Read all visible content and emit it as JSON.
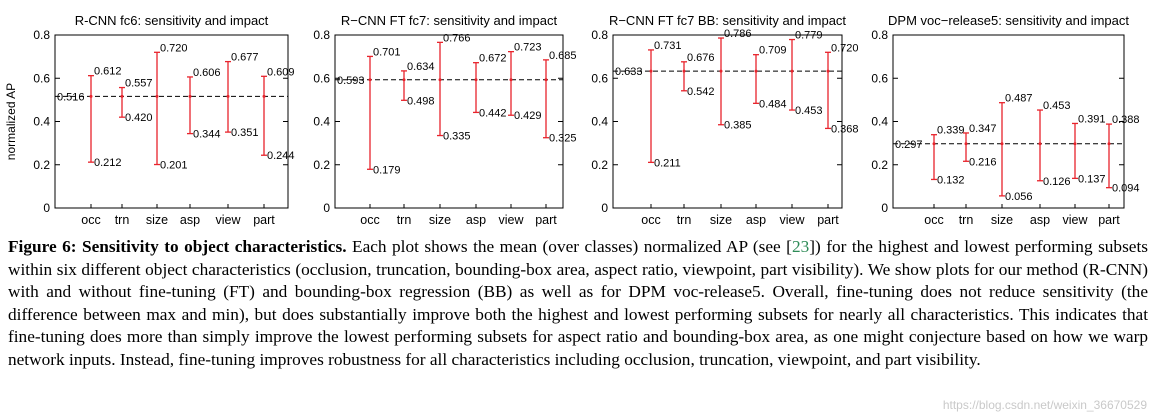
{
  "chart_data": [
    {
      "type": "errorbar",
      "title": "R-CNN fc6: sensitivity and impact",
      "ylabel": "normalized AP",
      "ylim": [
        0,
        0.8
      ],
      "yticks": [
        "0",
        "0.2",
        "0.4",
        "0.6",
        "0.8"
      ],
      "categories": [
        "occ",
        "trn",
        "size",
        "asp",
        "view",
        "part"
      ],
      "mean": 0.516,
      "mean_label": "0.516",
      "max": [
        0.612,
        0.557,
        0.72,
        0.606,
        0.677,
        0.609
      ],
      "max_labels": [
        "0.612",
        "0.557",
        "0.720",
        "0.606",
        "0.677",
        "0.609"
      ],
      "min": [
        0.212,
        0.42,
        0.201,
        0.344,
        0.351,
        0.244
      ],
      "min_labels": [
        "0.212",
        "0.420",
        "0.201",
        "0.344",
        "0.351",
        "0.244"
      ]
    },
    {
      "type": "errorbar",
      "title": "R−CNN FT fc7: sensitivity and impact",
      "ylabel": "",
      "ylim": [
        0,
        0.8
      ],
      "yticks": [
        "0",
        "0.2",
        "0.4",
        "0.6",
        "0.8"
      ],
      "categories": [
        "occ",
        "trn",
        "size",
        "asp",
        "view",
        "part"
      ],
      "mean": 0.593,
      "mean_label": "0.593",
      "max": [
        0.701,
        0.634,
        0.766,
        0.672,
        0.723,
        0.685
      ],
      "max_labels": [
        "0.701",
        "0.634",
        "0.766",
        "0.672",
        "0.723",
        "0.685"
      ],
      "min": [
        0.179,
        0.498,
        0.335,
        0.442,
        0.429,
        0.325
      ],
      "min_labels": [
        "0.179",
        "0.498",
        "0.335",
        "0.442",
        "0.429",
        "0.325"
      ]
    },
    {
      "type": "errorbar",
      "title": "R−CNN FT fc7 BB: sensitivity and impact",
      "ylabel": "",
      "ylim": [
        0,
        0.8
      ],
      "yticks": [
        "0",
        "0.2",
        "0.4",
        "0.6",
        "0.8"
      ],
      "categories": [
        "occ",
        "trn",
        "size",
        "asp",
        "view",
        "part"
      ],
      "mean": 0.633,
      "mean_label": "0.633",
      "max": [
        0.731,
        0.676,
        0.786,
        0.709,
        0.779,
        0.72
      ],
      "max_labels": [
        "0.731",
        "0.676",
        "0.786",
        "0.709",
        "0.779",
        "0.720"
      ],
      "min": [
        0.211,
        0.542,
        0.385,
        0.484,
        0.453,
        0.368
      ],
      "min_labels": [
        "0.211",
        "0.542",
        "0.385",
        "0.484",
        "0.453",
        "0.368"
      ]
    },
    {
      "type": "errorbar",
      "title": "DPM voc−release5: sensitivity and impact",
      "ylabel": "",
      "ylim": [
        0,
        0.8
      ],
      "yticks": [
        "0",
        "0.2",
        "0.4",
        "0.6",
        "0.8"
      ],
      "categories": [
        "occ",
        "trn",
        "size",
        "asp",
        "view",
        "part"
      ],
      "mean": 0.297,
      "mean_label": "0.297",
      "max": [
        0.339,
        0.347,
        0.487,
        0.453,
        0.391,
        0.388
      ],
      "max_labels": [
        "0.339",
        "0.347",
        "0.487",
        "0.453",
        "0.391",
        "0.388"
      ],
      "min": [
        0.132,
        0.216,
        0.056,
        0.126,
        0.137,
        0.094
      ],
      "min_labels": [
        "0.132",
        "0.216",
        "0.056",
        "0.126",
        "0.137",
        "0.094"
      ]
    }
  ],
  "caption": {
    "label": "Figure 6: Sensitivity to object characteristics.",
    "text_before_ref": " Each plot shows the mean (over classes) normalized AP (see [",
    "ref": "23",
    "text_after_ref": "]) for the highest and lowest performing subsets within six different object characteristics (occlusion, truncation, bounding-box area, aspect ratio, viewpoint, part visibility). We show plots for our method (R-CNN) with and without fine-tuning (FT) and bounding-box regression (BB) as well as for DPM voc-release5. Overall, fine-tuning does not reduce sensitivity (the difference between max and min), but does substantially improve both the highest and lowest performing subsets for nearly all characteristics. This indicates that fine-tuning does more than simply improve the lowest performing subsets for aspect ratio and bounding-box area, as one might conjecture based on how we warp network inputs. Instead, fine-tuning improves robustness for all characteristics including occlusion, truncation, viewpoint, and part visibility."
  },
  "watermark": "https://blog.csdn.net/weixin_36670529",
  "colors": {
    "bar": "#e8242c",
    "mean_line": "#000000",
    "ref": "#2e8b57"
  }
}
